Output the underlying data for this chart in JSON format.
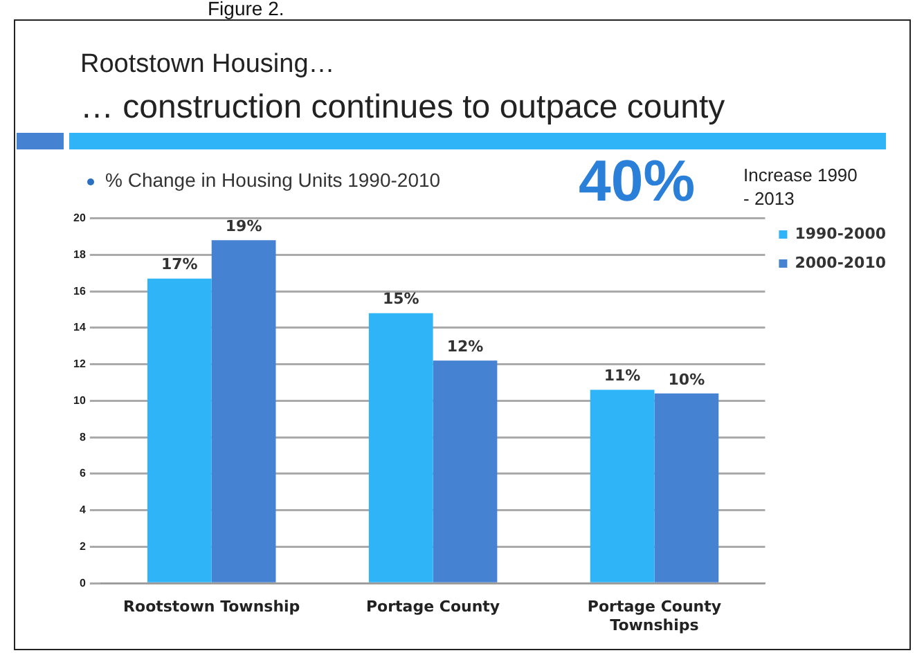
{
  "chart_data": {
    "type": "bar",
    "title": "Rootstown Housing…",
    "subtitle": "… construction continues to outpace county",
    "annotations": [
      "Figure 2.",
      "% Change in Housing Units 1990-2010",
      "40%",
      "Increase 1990 - 2013"
    ],
    "categories": [
      "Rootstown Township",
      "Portage County",
      "Portage County Townships"
    ],
    "series": [
      {
        "name": "1990-2000",
        "color": "#2fb4f8",
        "values": [
          16.7,
          14.8,
          10.6
        ],
        "value_labels": [
          "17%",
          "15%",
          "11%"
        ]
      },
      {
        "name": "2000-2010",
        "color": "#4682d2",
        "values": [
          18.8,
          12.2,
          10.4
        ],
        "value_labels": [
          "19%",
          "12%",
          "10%"
        ]
      }
    ],
    "ylim": [
      0,
      20
    ],
    "yticks": [
      0,
      2,
      4,
      6,
      8,
      10,
      12,
      14,
      16,
      18,
      20
    ],
    "grid": "y",
    "legend": "right"
  }
}
